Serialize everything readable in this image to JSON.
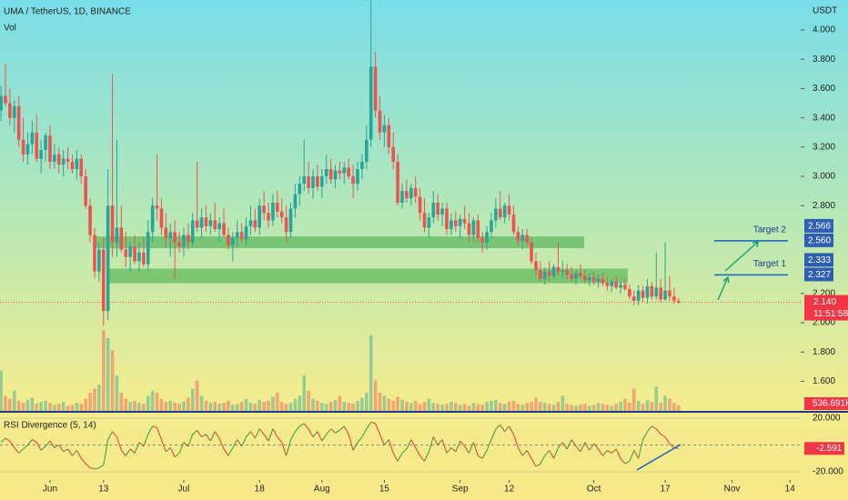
{
  "chart_data": {
    "type": "candlestick",
    "title": "UMA / TetherUS, 1D, BINANCE",
    "y_unit": "USDT",
    "volume_label": "Vol",
    "ylim": [
      1.398,
      4.205
    ],
    "xlim": [
      -0.22,
      179.4
    ],
    "yticks": [
      {
        "value": 4,
        "label": "4.000"
      },
      {
        "value": 3.8,
        "label": "3.800"
      },
      {
        "value": 3.6,
        "label": "3.600"
      },
      {
        "value": 3.4,
        "label": "3.400"
      },
      {
        "value": 3.2,
        "label": "3.200"
      },
      {
        "value": 3,
        "label": "3.000"
      },
      {
        "value": 2.8,
        "label": "2.800"
      },
      {
        "value": 2.2,
        "label": "2.200"
      },
      {
        "value": 2,
        "label": "2.000"
      },
      {
        "value": 1.8,
        "label": "1.800"
      },
      {
        "value": 1.6,
        "label": "1.600"
      }
    ],
    "xticks": [
      {
        "value": 11,
        "label": "Jun"
      },
      {
        "value": 23,
        "label": "13"
      },
      {
        "value": 41,
        "label": "Jul"
      },
      {
        "value": 58,
        "label": "18"
      },
      {
        "value": 72,
        "label": "Aug"
      },
      {
        "value": 86,
        "label": "15"
      },
      {
        "value": 103,
        "label": "Sep"
      },
      {
        "value": 114,
        "label": "12"
      },
      {
        "value": 133,
        "label": "Oct"
      },
      {
        "value": 149,
        "label": "17"
      },
      {
        "value": 164,
        "label": "Nov"
      },
      {
        "value": 177,
        "label": "14"
      }
    ],
    "up_color": "#26a69a",
    "down_color": "#ef5350",
    "ohlc": [
      [
        3.45,
        3.62,
        3.38,
        3.55
      ],
      [
        3.55,
        3.77,
        3.48,
        3.5
      ],
      [
        3.5,
        3.6,
        3.35,
        3.4
      ],
      [
        3.4,
        3.52,
        3.3,
        3.48
      ],
      [
        3.48,
        3.55,
        3.2,
        3.25
      ],
      [
        3.25,
        3.4,
        3.1,
        3.15
      ],
      [
        3.15,
        3.3,
        3.08,
        3.22
      ],
      [
        3.22,
        3.38,
        3.15,
        3.3
      ],
      [
        3.3,
        3.42,
        3.1,
        3.12
      ],
      [
        3.12,
        3.25,
        3.02,
        3.18
      ],
      [
        3.18,
        3.3,
        3.1,
        3.28
      ],
      [
        3.28,
        3.35,
        3.05,
        3.1
      ],
      [
        3.1,
        3.22,
        3.05,
        3.15
      ],
      [
        3.15,
        3.2,
        3.02,
        3.08
      ],
      [
        3.08,
        3.18,
        3.0,
        3.12
      ],
      [
        3.12,
        3.2,
        3.05,
        3.1
      ],
      [
        3.1,
        3.15,
        3.02,
        3.05
      ],
      [
        3.05,
        3.18,
        2.98,
        3.12
      ],
      [
        3.12,
        3.15,
        2.95,
        3.0
      ],
      [
        3.0,
        3.05,
        2.78,
        2.8
      ],
      [
        2.8,
        2.85,
        2.55,
        2.6
      ],
      [
        2.6,
        2.65,
        2.3,
        2.35
      ],
      [
        2.35,
        2.55,
        2.28,
        2.5
      ],
      [
        2.5,
        2.58,
        1.98,
        2.08
      ],
      [
        2.08,
        3.05,
        2.02,
        2.8
      ],
      [
        2.8,
        3.7,
        2.45,
        2.55
      ],
      [
        2.55,
        3.25,
        2.45,
        2.65
      ],
      [
        2.65,
        2.8,
        2.48,
        2.5
      ],
      [
        2.5,
        2.62,
        2.38,
        2.45
      ],
      [
        2.45,
        2.55,
        2.35,
        2.52
      ],
      [
        2.52,
        2.6,
        2.4,
        2.42
      ],
      [
        2.42,
        2.55,
        2.35,
        2.48
      ],
      [
        2.48,
        2.58,
        2.38,
        2.4
      ],
      [
        2.4,
        2.7,
        2.36,
        2.62
      ],
      [
        2.62,
        2.85,
        2.55,
        2.8
      ],
      [
        2.8,
        3.15,
        2.7,
        2.78
      ],
      [
        2.78,
        2.85,
        2.6,
        2.65
      ],
      [
        2.65,
        2.75,
        2.52,
        2.58
      ],
      [
        2.58,
        2.68,
        2.45,
        2.62
      ],
      [
        2.62,
        2.7,
        2.3,
        2.55
      ],
      [
        2.55,
        2.62,
        2.48,
        2.52
      ],
      [
        2.52,
        2.65,
        2.45,
        2.6
      ],
      [
        2.6,
        2.68,
        2.5,
        2.55
      ],
      [
        2.55,
        2.75,
        2.52,
        2.7
      ],
      [
        2.7,
        3.1,
        2.62,
        2.65
      ],
      [
        2.65,
        2.78,
        2.58,
        2.72
      ],
      [
        2.72,
        2.8,
        2.62,
        2.66
      ],
      [
        2.66,
        2.75,
        2.6,
        2.7
      ],
      [
        2.7,
        2.82,
        2.62,
        2.64
      ],
      [
        2.64,
        2.72,
        2.55,
        2.68
      ],
      [
        2.68,
        2.78,
        2.58,
        2.6
      ],
      [
        2.6,
        2.65,
        2.5,
        2.53
      ],
      [
        2.53,
        2.62,
        2.42,
        2.58
      ],
      [
        2.58,
        2.7,
        2.52,
        2.62
      ],
      [
        2.62,
        2.68,
        2.55,
        2.57
      ],
      [
        2.57,
        2.72,
        2.52,
        2.66
      ],
      [
        2.66,
        2.8,
        2.6,
        2.7
      ],
      [
        2.7,
        2.78,
        2.62,
        2.65
      ],
      [
        2.65,
        2.85,
        2.6,
        2.8
      ],
      [
        2.8,
        2.9,
        2.7,
        2.75
      ],
      [
        2.75,
        2.82,
        2.65,
        2.7
      ],
      [
        2.7,
        2.88,
        2.66,
        2.82
      ],
      [
        2.82,
        2.9,
        2.72,
        2.76
      ],
      [
        2.76,
        2.85,
        2.68,
        2.72
      ],
      [
        2.72,
        2.8,
        2.55,
        2.62
      ],
      [
        2.62,
        2.82,
        2.58,
        2.78
      ],
      [
        2.78,
        2.95,
        2.72,
        2.88
      ],
      [
        2.88,
        3.0,
        2.8,
        2.95
      ],
      [
        2.95,
        3.25,
        2.9,
        3.0
      ],
      [
        3.0,
        3.1,
        2.88,
        2.92
      ],
      [
        2.92,
        3.05,
        2.85,
        3.0
      ],
      [
        3.0,
        3.08,
        2.9,
        2.93
      ],
      [
        2.93,
        3.05,
        2.85,
        3.0
      ],
      [
        3.0,
        3.15,
        2.95,
        3.05
      ],
      [
        3.05,
        3.12,
        2.95,
        2.98
      ],
      [
        2.98,
        3.08,
        2.92,
        3.04
      ],
      [
        3.04,
        3.1,
        2.98,
        3.02
      ],
      [
        3.02,
        3.1,
        2.95,
        3.06
      ],
      [
        3.06,
        3.12,
        2.98,
        3.0
      ],
      [
        3.0,
        3.08,
        2.85,
        2.95
      ],
      [
        2.95,
        3.1,
        2.9,
        3.05
      ],
      [
        3.05,
        3.15,
        2.98,
        3.1
      ],
      [
        3.1,
        3.35,
        3.05,
        3.25
      ],
      [
        3.25,
        4.2,
        3.2,
        3.75
      ],
      [
        3.75,
        3.85,
        3.4,
        3.45
      ],
      [
        3.45,
        3.55,
        3.25,
        3.3
      ],
      [
        3.3,
        3.42,
        3.2,
        3.35
      ],
      [
        3.35,
        3.4,
        3.15,
        3.2
      ],
      [
        3.2,
        3.3,
        3.05,
        3.1
      ],
      [
        3.1,
        3.15,
        2.8,
        2.82
      ],
      [
        2.82,
        2.95,
        2.78,
        2.9
      ],
      [
        2.9,
        2.98,
        2.82,
        2.85
      ],
      [
        2.85,
        2.95,
        2.8,
        2.92
      ],
      [
        2.92,
        3.0,
        2.82,
        2.86
      ],
      [
        2.86,
        2.92,
        2.7,
        2.75
      ],
      [
        2.75,
        2.85,
        2.62,
        2.65
      ],
      [
        2.65,
        2.75,
        2.58,
        2.72
      ],
      [
        2.72,
        2.9,
        2.68,
        2.82
      ],
      [
        2.82,
        2.88,
        2.7,
        2.74
      ],
      [
        2.74,
        2.82,
        2.66,
        2.78
      ],
      [
        2.78,
        2.82,
        2.6,
        2.64
      ],
      [
        2.64,
        2.75,
        2.6,
        2.7
      ],
      [
        2.7,
        2.76,
        2.62,
        2.66
      ],
      [
        2.66,
        2.74,
        2.58,
        2.71
      ],
      [
        2.71,
        2.8,
        2.64,
        2.68
      ],
      [
        2.68,
        2.75,
        2.55,
        2.6
      ],
      [
        2.6,
        2.72,
        2.56,
        2.7
      ],
      [
        2.7,
        2.74,
        2.55,
        2.58
      ],
      [
        2.58,
        2.62,
        2.48,
        2.55
      ],
      [
        2.55,
        2.66,
        2.5,
        2.62
      ],
      [
        2.62,
        2.75,
        2.58,
        2.7
      ],
      [
        2.7,
        2.85,
        2.65,
        2.78
      ],
      [
        2.78,
        2.9,
        2.7,
        2.72
      ],
      [
        2.72,
        2.82,
        2.68,
        2.8
      ],
      [
        2.8,
        2.88,
        2.7,
        2.74
      ],
      [
        2.74,
        2.8,
        2.6,
        2.62
      ],
      [
        2.62,
        2.66,
        2.52,
        2.56
      ],
      [
        2.56,
        2.64,
        2.5,
        2.6
      ],
      [
        2.6,
        2.64,
        2.52,
        2.55
      ],
      [
        2.55,
        2.58,
        2.4,
        2.42
      ],
      [
        2.42,
        2.48,
        2.32,
        2.36
      ],
      [
        2.36,
        2.42,
        2.28,
        2.3
      ],
      [
        2.3,
        2.38,
        2.26,
        2.35
      ],
      [
        2.35,
        2.42,
        2.28,
        2.32
      ],
      [
        2.32,
        2.4,
        2.3,
        2.38
      ],
      [
        2.38,
        2.55,
        2.32,
        2.35
      ],
      [
        2.35,
        2.42,
        2.3,
        2.36
      ],
      [
        2.36,
        2.4,
        2.3,
        2.33
      ],
      [
        2.33,
        2.38,
        2.28,
        2.3
      ],
      [
        2.3,
        2.36,
        2.26,
        2.34
      ],
      [
        2.34,
        2.4,
        2.3,
        2.32
      ],
      [
        2.32,
        2.36,
        2.27,
        2.29
      ],
      [
        2.29,
        2.34,
        2.25,
        2.31
      ],
      [
        2.31,
        2.35,
        2.26,
        2.28
      ],
      [
        2.28,
        2.33,
        2.24,
        2.3
      ],
      [
        2.3,
        2.34,
        2.25,
        2.27
      ],
      [
        2.27,
        2.31,
        2.22,
        2.25
      ],
      [
        2.25,
        2.3,
        2.21,
        2.28
      ],
      [
        2.28,
        2.32,
        2.23,
        2.24
      ],
      [
        2.24,
        2.28,
        2.2,
        2.26
      ],
      [
        2.26,
        2.3,
        2.22,
        2.23
      ],
      [
        2.23,
        2.26,
        2.16,
        2.18
      ],
      [
        2.18,
        2.22,
        2.12,
        2.15
      ],
      [
        2.15,
        2.26,
        2.12,
        2.22
      ],
      [
        2.22,
        2.25,
        2.14,
        2.17
      ],
      [
        2.17,
        2.3,
        2.13,
        2.25
      ],
      [
        2.25,
        2.28,
        2.16,
        2.18
      ],
      [
        2.18,
        2.48,
        2.16,
        2.24
      ],
      [
        2.24,
        2.3,
        2.14,
        2.16
      ],
      [
        2.16,
        2.55,
        2.15,
        2.22
      ],
      [
        2.22,
        2.32,
        2.15,
        2.18
      ],
      [
        2.18,
        2.24,
        2.13,
        2.15
      ],
      [
        2.15,
        2.17,
        2.13,
        2.14
      ]
    ],
    "volume": {
      "ylim": [
        0,
        9000000
      ],
      "last_label": "536.691K",
      "values": [
        4000000,
        1500000,
        1200000,
        2000000,
        1000000,
        800000,
        1100000,
        1300000,
        700000,
        900000,
        1000000,
        800000,
        600000,
        700000,
        900000,
        500000,
        600000,
        800000,
        700000,
        1200000,
        1800000,
        2200000,
        2600000,
        8000000,
        7200000,
        6000000,
        3500000,
        1800000,
        1200000,
        900000,
        1000000,
        800000,
        700000,
        1500000,
        2000000,
        1800000,
        1200000,
        900000,
        1000000,
        800000,
        700000,
        900000,
        1300000,
        2200000,
        3000000,
        1500000,
        1000000,
        800000,
        900000,
        700000,
        800000,
        1000000,
        600000,
        700000,
        900000,
        1200000,
        800000,
        700000,
        1100000,
        900000,
        1000000,
        1400000,
        1800000,
        900000,
        700000,
        800000,
        1200000,
        1500000,
        3500000,
        2000000,
        1200000,
        1000000,
        800000,
        700000,
        900000,
        1100000,
        1500000,
        900000,
        800000,
        700000,
        1000000,
        1300000,
        1800000,
        7500000,
        3000000,
        1800000,
        1500000,
        1200000,
        1000000,
        1400000,
        1100000,
        900000,
        800000,
        1000000,
        700000,
        900000,
        1200000,
        800000,
        700000,
        600000,
        700000,
        900000,
        800000,
        600000,
        700000,
        500000,
        800000,
        700000,
        600000,
        900000,
        1000000,
        1100000,
        800000,
        700000,
        900000,
        1000000,
        700000,
        600000,
        800000,
        900000,
        1300000,
        900000,
        800000,
        700000,
        600000,
        900000,
        1500000,
        700000,
        600000,
        500000,
        600000,
        700000,
        500000,
        600000,
        800000,
        700000,
        600000,
        500000,
        700000,
        900000,
        1200000,
        800000,
        2200000,
        1000000,
        700000,
        1100000,
        900000,
        2400000,
        800000,
        1500000,
        1200000,
        800000,
        536691
      ]
    },
    "last_price_label": "2.140",
    "countdown": "11:51:58",
    "zones": [
      {
        "range": [
          2.51,
          2.59
        ],
        "x": [
          21.2,
          130.8
        ]
      },
      {
        "range": [
          2.27,
          2.37
        ],
        "x": [
          24.3,
          140.6
        ]
      }
    ],
    "targets": [
      {
        "name": "Target 1",
        "prices": [
          {
            "value": 2.333,
            "label": "2.333"
          },
          {
            "value": 2.327,
            "label": "2.327"
          }
        ]
      },
      {
        "name": "Target 2",
        "prices": [
          {
            "value": 2.566,
            "label": "2.566"
          },
          {
            "value": 2.56,
            "label": "2.560"
          }
        ]
      }
    ],
    "rsi": {
      "name": "RSI Divergence (5, 14)",
      "ylim": [
        -27.46,
        23.39
      ],
      "ticks": [
        {
          "value": 20,
          "label": "20.000"
        },
        {
          "value": -20,
          "label": "-20.000"
        }
      ],
      "last_label": "-2.591",
      "values": [
        2,
        5,
        3,
        -2,
        -6,
        -3,
        0,
        4,
        2,
        -4,
        -1,
        3,
        -2,
        0,
        -5,
        -3,
        -8,
        -4,
        -10,
        -14,
        -17,
        -18,
        -17,
        -15,
        4,
        10,
        6,
        -4,
        -8,
        -3,
        -6,
        2,
        -1,
        8,
        14,
        13,
        4,
        -5,
        -2,
        -9,
        -6,
        2,
        -1,
        8,
        11,
        6,
        8,
        3,
        10,
        5,
        -3,
        -8,
        -2,
        4,
        -1,
        6,
        10,
        5,
        12,
        8,
        3,
        12,
        6,
        2,
        -8,
        4,
        10,
        14,
        16,
        12,
        6,
        10,
        3,
        8,
        12,
        9,
        11,
        14,
        8,
        -4,
        2,
        6,
        12,
        17,
        16,
        8,
        0,
        4,
        -6,
        -12,
        -6,
        -3,
        4,
        -2,
        -8,
        -12,
        -5,
        6,
        0,
        4,
        -6,
        -2,
        -5,
        3,
        -1,
        -6,
        2,
        -8,
        -10,
        -4,
        4,
        12,
        15,
        10,
        14,
        8,
        -2,
        -8,
        -4,
        -10,
        -16,
        -14,
        -8,
        -4,
        -10,
        -2,
        2,
        -3,
        4,
        -1,
        -5,
        2,
        -4,
        1,
        -3,
        -8,
        -4,
        -6,
        -3,
        -10,
        -14,
        -12,
        -4,
        -10,
        4,
        10,
        14,
        12,
        8,
        6,
        1,
        -2,
        -2.591
      ]
    }
  }
}
